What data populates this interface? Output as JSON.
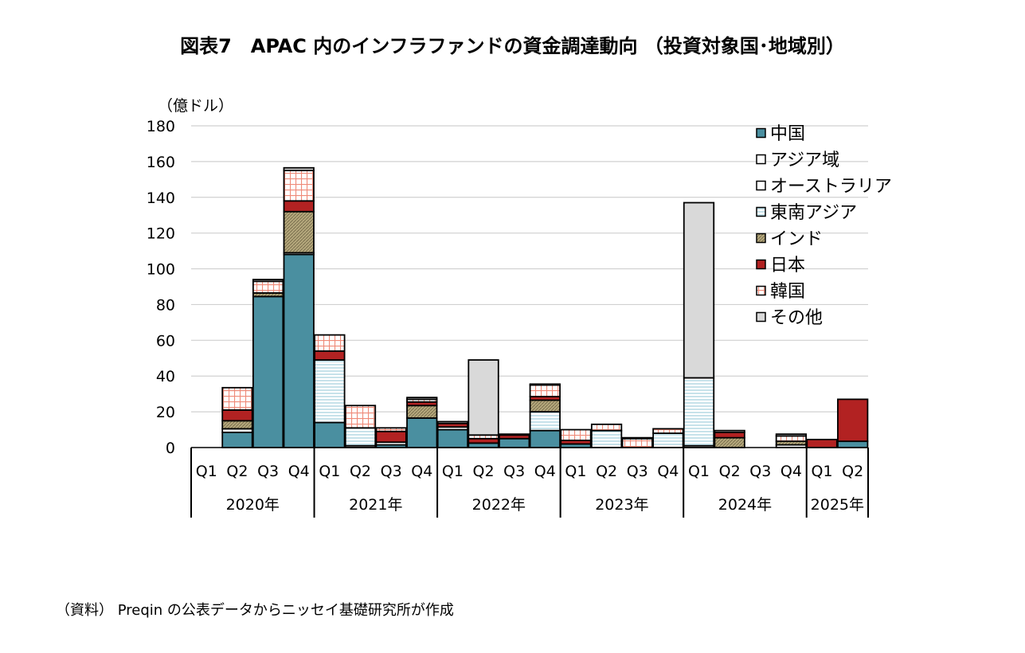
{
  "title": "図表7　APAC 内のインフラファンドの資金調達動向 （投資対象国･地域別）",
  "source_note": "（資料） Preqin の公表データからニッセイ基礎研究所が作成",
  "colors": {
    "china": "#4a8fa0",
    "asia_region": "#ffffff",
    "australia": "#ffffff",
    "southeast_asia": "#e6f3f7",
    "india": "#b5a87c",
    "japan": "#b22222",
    "korea": "#f2a090",
    "other": "#d9d9d9"
  },
  "chart_data": {
    "type": "bar",
    "stacked": true,
    "yunit": "（億ドル）",
    "ylim": [
      0,
      180
    ],
    "yticks": [
      0,
      20,
      40,
      60,
      80,
      100,
      120,
      140,
      160,
      180
    ],
    "grid": true,
    "legend_position": "top-right",
    "categories": [
      "Q1",
      "Q2",
      "Q3",
      "Q4",
      "Q1",
      "Q2",
      "Q3",
      "Q4",
      "Q1",
      "Q2",
      "Q3",
      "Q4",
      "Q1",
      "Q2",
      "Q3",
      "Q4",
      "Q1",
      "Q2",
      "Q3",
      "Q4",
      "Q1",
      "Q2"
    ],
    "year_groups": [
      {
        "label": "2020年",
        "count": 4
      },
      {
        "label": "2021年",
        "count": 4
      },
      {
        "label": "2022年",
        "count": 4
      },
      {
        "label": "2023年",
        "count": 4
      },
      {
        "label": "2024年",
        "count": 4
      },
      {
        "label": "2025年",
        "count": 2
      }
    ],
    "series": [
      {
        "name": "中国",
        "key": "china",
        "pattern": "solid",
        "values": [
          0,
          8.5,
          84.5,
          108,
          14,
          0,
          1.5,
          16.5,
          10,
          2.5,
          5,
          9.5,
          2,
          0,
          0,
          0,
          0,
          0,
          0,
          0,
          0,
          3.5
        ]
      },
      {
        "name": "アジア域",
        "key": "asia_region",
        "pattern": "white",
        "values": [
          0,
          2,
          0,
          1,
          0,
          1,
          1.5,
          0,
          1.5,
          0,
          0,
          0,
          0,
          0,
          0,
          0,
          1,
          0,
          0,
          1.5,
          0,
          0
        ]
      },
      {
        "name": "オーストラリア",
        "key": "australia",
        "pattern": "white",
        "values": [
          0,
          0,
          0,
          0,
          0,
          0,
          0,
          0,
          0,
          0,
          0,
          0,
          0,
          0,
          0,
          0,
          0,
          0,
          0,
          0,
          0,
          0
        ]
      },
      {
        "name": "東南アジア",
        "key": "southeast_asia",
        "pattern": "hlines",
        "values": [
          0,
          0,
          0,
          0,
          35,
          10,
          0,
          0,
          0,
          0,
          0,
          10.5,
          0,
          9.5,
          0,
          8,
          38,
          0,
          0,
          0,
          0,
          0
        ]
      },
      {
        "name": "インド",
        "key": "india",
        "pattern": "diag",
        "values": [
          0,
          4.5,
          2,
          23,
          0,
          0,
          0,
          7,
          0,
          0,
          0,
          6.5,
          0,
          0,
          0,
          0,
          0,
          5.5,
          0,
          2,
          0,
          0
        ]
      },
      {
        "name": "日本",
        "key": "japan",
        "pattern": "solid",
        "values": [
          0,
          6,
          0,
          6,
          5,
          0,
          6,
          2,
          2,
          2.5,
          2,
          2,
          2,
          0,
          0,
          0,
          0,
          3,
          0,
          0,
          4.5,
          23.5
        ]
      },
      {
        "name": "韓国",
        "key": "korea",
        "pattern": "grid",
        "values": [
          0,
          12.5,
          6.5,
          17,
          9,
          12.5,
          2,
          1.5,
          0,
          2,
          0,
          6.5,
          6,
          3.5,
          5,
          2.5,
          0,
          0,
          0,
          3,
          0,
          0
        ]
      },
      {
        "name": "その他",
        "key": "other",
        "pattern": "solid",
        "values": [
          0,
          0,
          1,
          1.5,
          0,
          0,
          0,
          1,
          1,
          42,
          0.5,
          0.5,
          0,
          0,
          0.5,
          0,
          98,
          1,
          0,
          1,
          0,
          0
        ]
      }
    ]
  }
}
